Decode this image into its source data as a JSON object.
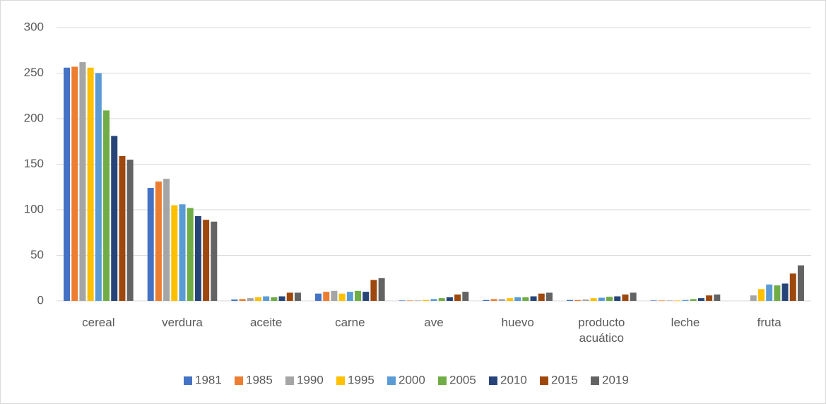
{
  "chart_data": {
    "type": "bar",
    "categories": [
      "cereal",
      "verdura",
      "aceite",
      "carne",
      "ave",
      "huevo",
      "producto acuático",
      "leche",
      "fruta"
    ],
    "series": [
      {
        "name": "1981",
        "color": "#4472c4",
        "values": [
          256,
          124,
          1.5,
          8,
          0.5,
          1,
          1,
          0.5,
          0
        ]
      },
      {
        "name": "1985",
        "color": "#ed7d31",
        "values": [
          257,
          131,
          2,
          10,
          0.5,
          2,
          1,
          0.5,
          0
        ]
      },
      {
        "name": "1990",
        "color": "#a5a5a5",
        "values": [
          262,
          134,
          3,
          11,
          0.5,
          2,
          1.5,
          0.5,
          6
        ]
      },
      {
        "name": "1995",
        "color": "#ffc000",
        "values": [
          256,
          105,
          4,
          8,
          1,
          3,
          3,
          0.5,
          13
        ]
      },
      {
        "name": "2000",
        "color": "#5b9bd5",
        "values": [
          250,
          106,
          5,
          10,
          2,
          4,
          3.5,
          1,
          18
        ]
      },
      {
        "name": "2005",
        "color": "#70ad47",
        "values": [
          209,
          102,
          4,
          11,
          3,
          4,
          4.5,
          2,
          17
        ]
      },
      {
        "name": "2010",
        "color": "#264478",
        "values": [
          181,
          93,
          5,
          10,
          4,
          5,
          5,
          3,
          19
        ]
      },
      {
        "name": "2015",
        "color": "#9e480e",
        "values": [
          159,
          89,
          9,
          23,
          7,
          8,
          7,
          6,
          30
        ]
      },
      {
        "name": "2019",
        "color": "#636363",
        "values": [
          155,
          87,
          9,
          25,
          10,
          9,
          9,
          7,
          39
        ]
      }
    ],
    "ylim": [
      0,
      300
    ],
    "yticks": [
      0,
      50,
      100,
      150,
      200,
      250,
      300
    ],
    "grid": true,
    "legend": "bottom"
  }
}
